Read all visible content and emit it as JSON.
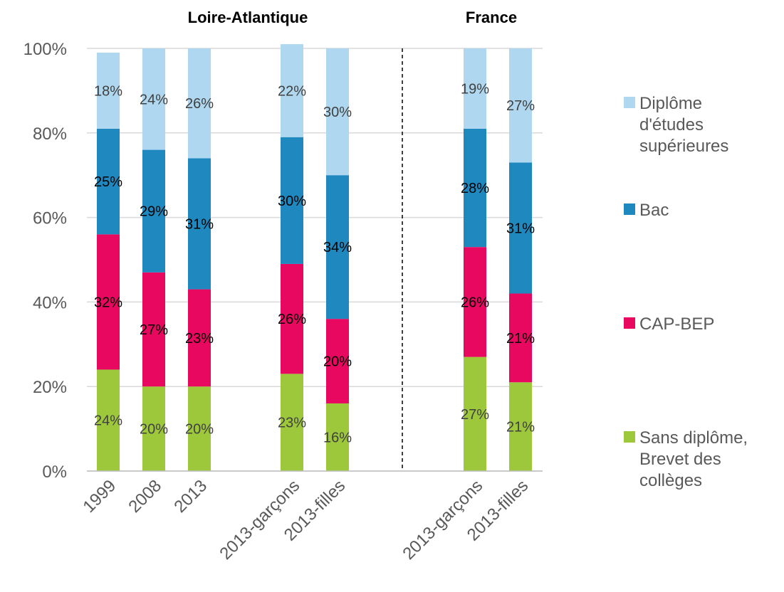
{
  "chart_data": {
    "type": "bar",
    "stacked": true,
    "percent_stacked": true,
    "groups": [
      {
        "title": "Loire-Atlantique",
        "categories": [
          "1999",
          "2008",
          "2013",
          "2013-garçons",
          "2013-filles"
        ]
      },
      {
        "title": "France",
        "categories": [
          "2013-garçons",
          "2013-filles"
        ]
      }
    ],
    "categories": [
      "1999",
      "2008",
      "2013",
      "2013-garçons",
      "2013-filles",
      "2013-garçons",
      "2013-filles"
    ],
    "series": [
      {
        "name": "Sans diplôme, Brevet des collèges",
        "color": "#9dc83c",
        "label_color": "#404040",
        "values": [
          24,
          20,
          20,
          23,
          16,
          27,
          21
        ],
        "labels": [
          "24%",
          "20%",
          "20%",
          "23%",
          "16%",
          "27%",
          "21%"
        ]
      },
      {
        "name": "CAP-BEP",
        "color": "#e8085f",
        "label_color": "#000000",
        "values": [
          32,
          27,
          23,
          26,
          20,
          26,
          21
        ],
        "labels": [
          "32%",
          "27%",
          "23%",
          "26%",
          "20%",
          "26%",
          "21%"
        ]
      },
      {
        "name": "Bac",
        "color": "#1f88bf",
        "label_color": "#000000",
        "values": [
          25,
          29,
          31,
          30,
          34,
          28,
          31
        ],
        "labels": [
          "25%",
          "29%",
          "31%",
          "30%",
          "34%",
          "28%",
          "31%"
        ]
      },
      {
        "name": "Diplôme d'études supérieures",
        "color": "#afd7f0",
        "label_color": "#404040",
        "values": [
          18,
          24,
          26,
          22,
          30,
          19,
          27
        ],
        "labels": [
          "18%",
          "24%",
          "26%",
          "22%",
          "30%",
          "19%",
          "27%"
        ]
      }
    ],
    "yticks": [
      "0%",
      "20%",
      "40%",
      "60%",
      "80%",
      "100%"
    ],
    "ylim": [
      0,
      100
    ],
    "grid": true,
    "legend": {
      "placement": "right",
      "entries": [
        {
          "series_index": 3,
          "lines": [
            "Diplôme",
            "d'études",
            "supérieures"
          ]
        },
        {
          "series_index": 2,
          "lines": [
            "Bac"
          ]
        },
        {
          "series_index": 1,
          "lines": [
            "CAP-BEP"
          ]
        },
        {
          "series_index": 0,
          "lines": [
            "Sans diplôme,",
            "Brevet des",
            "collèges"
          ]
        }
      ]
    },
    "separator": {
      "between_groups": true,
      "style": "dashed"
    }
  }
}
